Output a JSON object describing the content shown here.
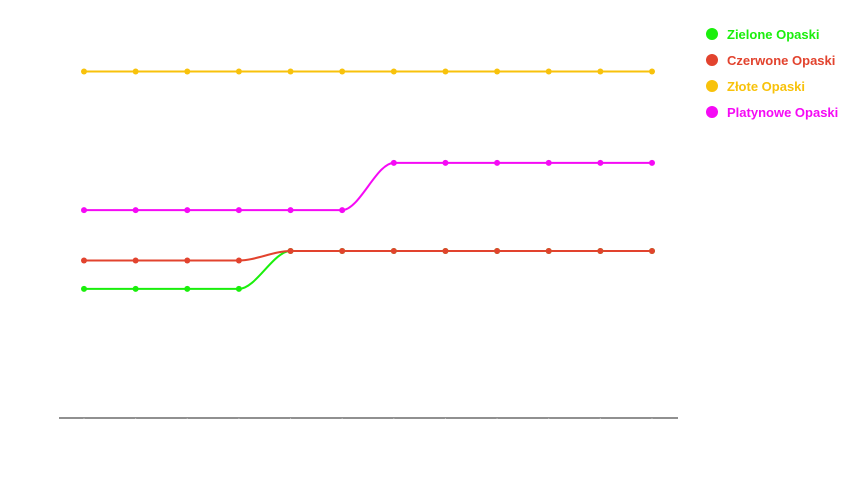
{
  "chart_data": {
    "type": "line",
    "x": [
      1,
      2,
      3,
      4,
      5,
      6,
      7,
      8,
      9,
      10,
      11,
      12
    ],
    "ylim": [
      0,
      12
    ],
    "grid": false,
    "legend_position": "top-right",
    "series": [
      {
        "name": "Zielone Opaski",
        "color": "#1aef0c",
        "values": [
          4.1,
          4.1,
          4.1,
          4.1,
          5.3,
          5.3,
          5.3,
          5.3,
          5.3,
          5.3,
          5.3,
          5.3
        ]
      },
      {
        "name": "Czerwone Opaski",
        "color": "#e2432e",
        "values": [
          5.0,
          5.0,
          5.0,
          5.0,
          5.3,
          5.3,
          5.3,
          5.3,
          5.3,
          5.3,
          5.3,
          5.3
        ]
      },
      {
        "name": "Złote Opaski",
        "color": "#f8c20b",
        "values": [
          11.0,
          11.0,
          11.0,
          11.0,
          11.0,
          11.0,
          11.0,
          11.0,
          11.0,
          11.0,
          11.0,
          11.0
        ]
      },
      {
        "name": "Platynowe Opaski",
        "color": "#f50af5",
        "values": [
          6.6,
          6.6,
          6.6,
          6.6,
          6.6,
          6.6,
          8.1,
          8.1,
          8.1,
          8.1,
          8.1,
          8.1
        ]
      }
    ]
  }
}
